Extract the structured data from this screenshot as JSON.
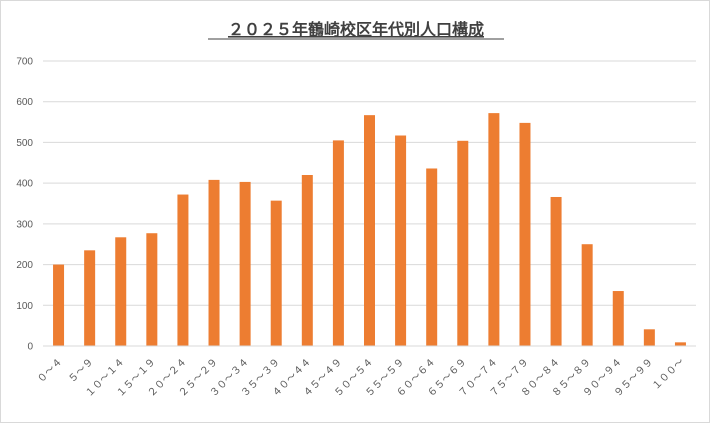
{
  "chart_data": {
    "type": "bar",
    "title": "２０２５年鶴崎校区年代別人口構成",
    "xlabel": "",
    "ylabel": "",
    "ylim": [
      0,
      700
    ],
    "y_ticks": [
      0,
      100,
      200,
      300,
      400,
      500,
      600,
      700
    ],
    "grid": true,
    "legend": "none",
    "bar_color": "#ED7D31",
    "categories": [
      "０～４",
      "５～９",
      "１０～１４",
      "１５～１９",
      "２０～２４",
      "２５～２９",
      "３０～３４",
      "３５～３９",
      "４０～４４",
      "４５～４９",
      "５０～５４",
      "５５～５９",
      "６０～６４",
      "６５～６９",
      "７０～７４",
      "７５～７９",
      "８０～８４",
      "８５～８９",
      "９０～９４",
      "９５～９９",
      "１００～"
    ],
    "values": [
      200,
      235,
      267,
      277,
      372,
      408,
      403,
      357,
      420,
      505,
      567,
      517,
      436,
      504,
      572,
      548,
      366,
      250,
      135,
      41,
      9
    ]
  }
}
